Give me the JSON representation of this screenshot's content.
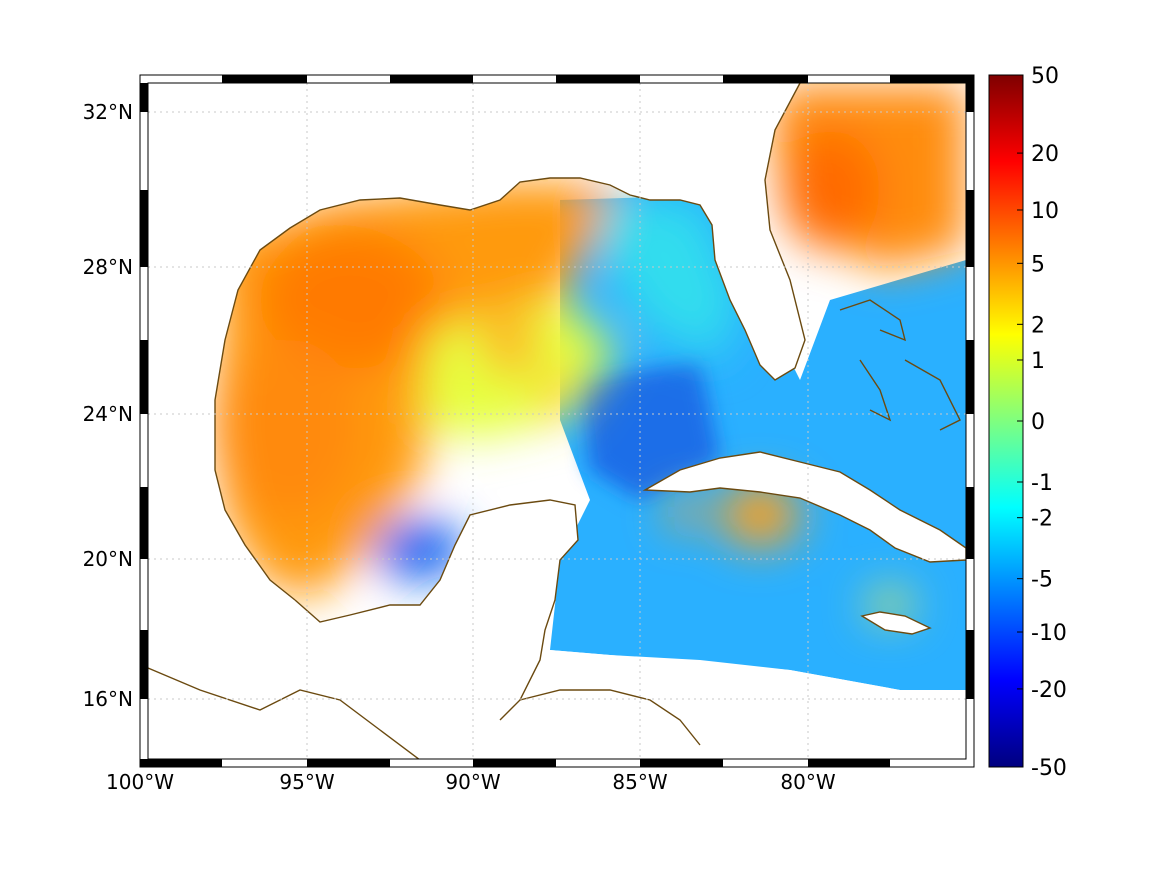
{
  "map": {
    "lon_ticks": [
      "100°W",
      "95°W",
      "90°W",
      "85°W",
      "80°W"
    ],
    "lat_ticks": [
      "32°N",
      "28°N",
      "24°N",
      "20°N",
      "16°N"
    ],
    "land_color": "#ffffff",
    "coastline_color": "#6b4a10",
    "grid": "dotted"
  },
  "colorbar": {
    "tick_labels": [
      "50",
      "20",
      "10",
      "5",
      "2",
      "1",
      "0",
      "-1",
      "-2",
      "-5",
      "-10",
      "-20",
      "-50"
    ],
    "colormap": "jet",
    "scale": "symmetric log",
    "min": -50,
    "max": 50
  },
  "fields": {
    "warm_anomaly_color": "#f59a14",
    "cool_anomaly_color": "#1e9bff"
  }
}
